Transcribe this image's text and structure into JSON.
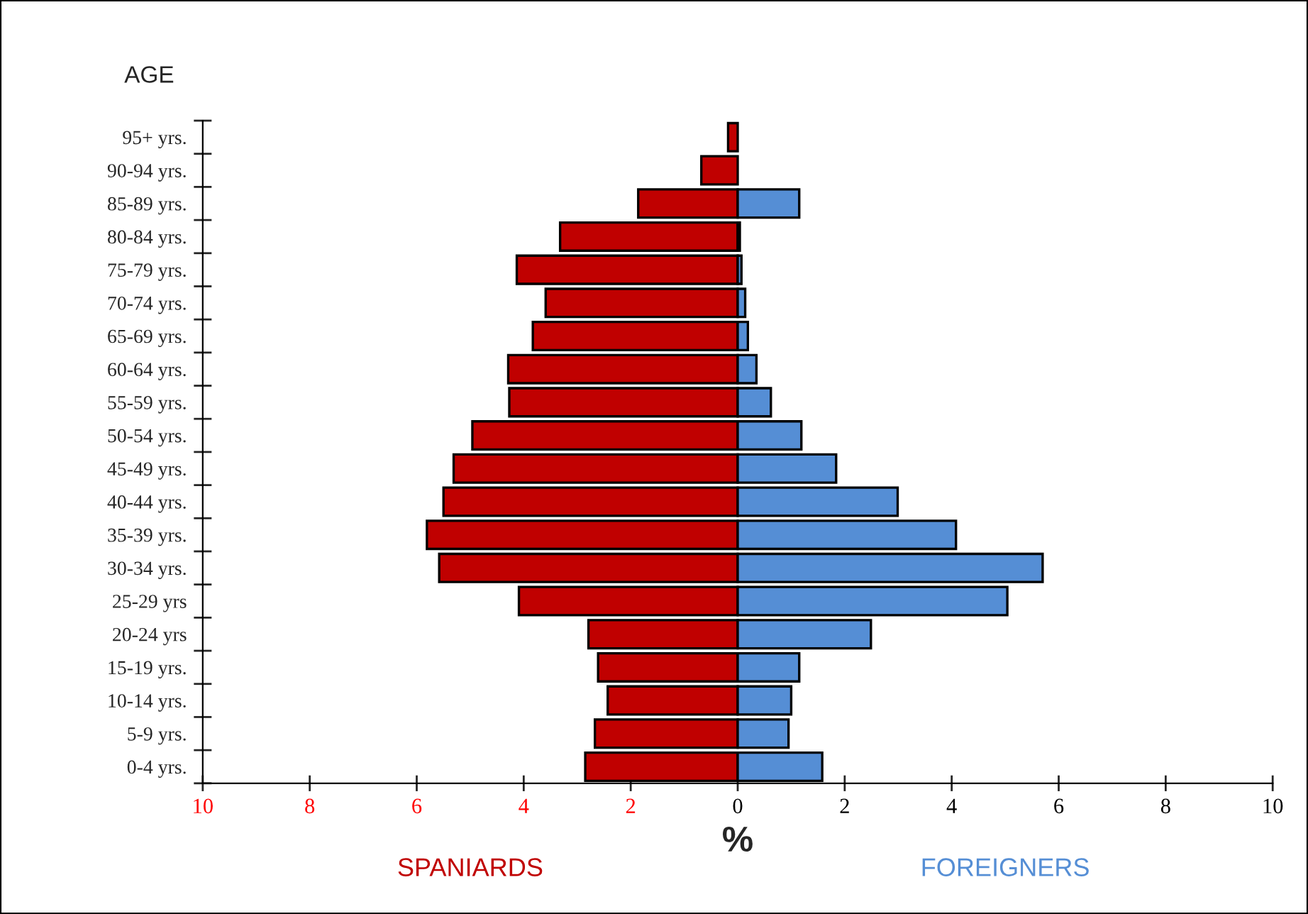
{
  "chart_data": {
    "type": "bar",
    "orientation": "horizontal",
    "ylabel": "AGE",
    "xlabel": "%",
    "categories": [
      "95+ yrs.",
      "90-94 yrs.",
      "85-89 yrs.",
      "80-84 yrs.",
      "75-79 yrs.",
      "70-74 yrs.",
      "65-69 yrs.",
      "60-64 yrs.",
      "55-59 yrs.",
      "50-54 yrs.",
      "45-49 yrs.",
      "40-44 yrs.",
      "35-39 yrs.",
      "30-34 yrs.",
      "25-29 yrs",
      "20-24 yrs",
      "15-19 yrs.",
      "10-14 yrs.",
      "5-9 yrs.",
      "0-4 yrs."
    ],
    "series": [
      {
        "name": "SPANIARDS",
        "color": "#c00000",
        "values": [
          -0.18,
          -0.68,
          -1.86,
          -3.32,
          -4.13,
          -3.59,
          -3.83,
          -4.29,
          -4.27,
          -4.96,
          -5.31,
          -5.5,
          -5.81,
          -5.58,
          -4.09,
          -2.79,
          -2.61,
          -2.43,
          -2.67,
          -2.85
        ]
      },
      {
        "name": "FOREIGNERS",
        "color": "#558ed5",
        "values": [
          null,
          null,
          1.15,
          0.04,
          0.07,
          0.14,
          0.19,
          0.35,
          0.62,
          1.19,
          1.84,
          2.99,
          4.08,
          5.7,
          5.04,
          2.49,
          1.15,
          1.0,
          0.95,
          1.58
        ]
      }
    ],
    "xlim": [
      -10,
      10
    ],
    "xticks": [
      {
        "value": -10,
        "label": "10"
      },
      {
        "value": -8,
        "label": "8"
      },
      {
        "value": -6,
        "label": "6"
      },
      {
        "value": -4,
        "label": "4"
      },
      {
        "value": -2,
        "label": "2"
      },
      0,
      2,
      4,
      6,
      8,
      10
    ],
    "stacked": true,
    "grid": false,
    "legend": false
  }
}
